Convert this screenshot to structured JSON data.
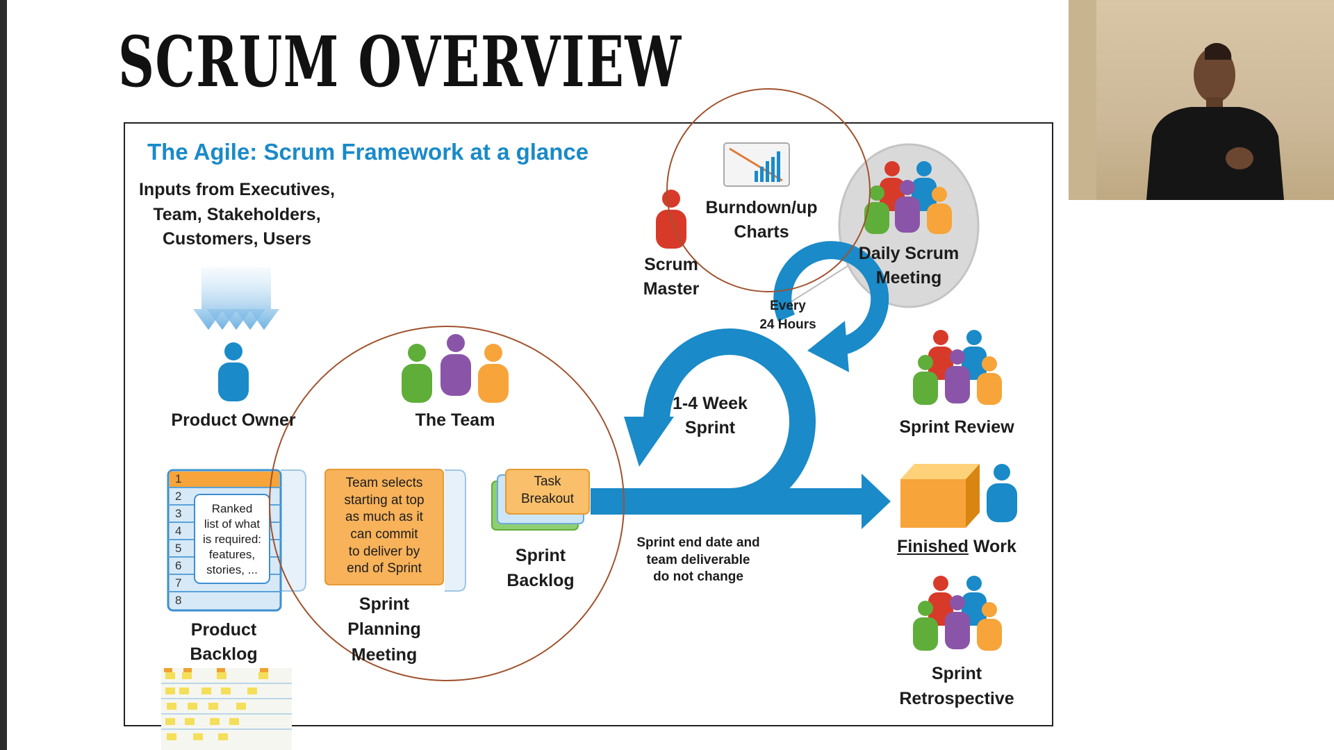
{
  "slide": {
    "title": "SCRUM OVERVIEW"
  },
  "diagram": {
    "title": "The Agile: Scrum Framework at a glance",
    "inputs": [
      "Inputs from Executives,",
      "Team, Stakeholders,",
      "Customers, Users"
    ],
    "product_owner": "Product Owner",
    "the_team": "The Team",
    "scrum_master": [
      "Scrum",
      "Master"
    ],
    "burndown": [
      "Burndown/up",
      "Charts"
    ],
    "daily_scrum": [
      "Daily Scrum",
      "Meeting"
    ],
    "every_24": [
      "Every",
      "24 Hours"
    ],
    "sprint_length": [
      "1-4 Week",
      "Sprint"
    ],
    "backlog_numbers": [
      "1",
      "2",
      "3",
      "4",
      "5",
      "6",
      "7",
      "8"
    ],
    "ranked_note": [
      "Ranked",
      "list of what",
      "is required:",
      "features,",
      "stories, ..."
    ],
    "product_backlog": [
      "Product",
      "Backlog"
    ],
    "team_selects": [
      "Team selects",
      "starting at top",
      "as much as it",
      "can commit",
      "to deliver by",
      "end of Sprint"
    ],
    "sprint_planning": [
      "Sprint",
      "Planning",
      "Meeting"
    ],
    "task_breakout": [
      "Task",
      "Breakout"
    ],
    "sprint_backlog": [
      "Sprint",
      "Backlog"
    ],
    "sprint_end": [
      "Sprint end date and",
      "team deliverable",
      "do not change"
    ],
    "sprint_review": "Sprint Review",
    "finished": "Finished",
    "work": " Work",
    "sprint_retro": [
      "Sprint",
      "Retrospective"
    ]
  },
  "colors": {
    "blue": "#1a8ac8",
    "orange": "#f7a43a",
    "red": "#d83a2a",
    "green": "#5fae3a",
    "purple": "#8a55a8",
    "annotation": "#a0522d"
  }
}
